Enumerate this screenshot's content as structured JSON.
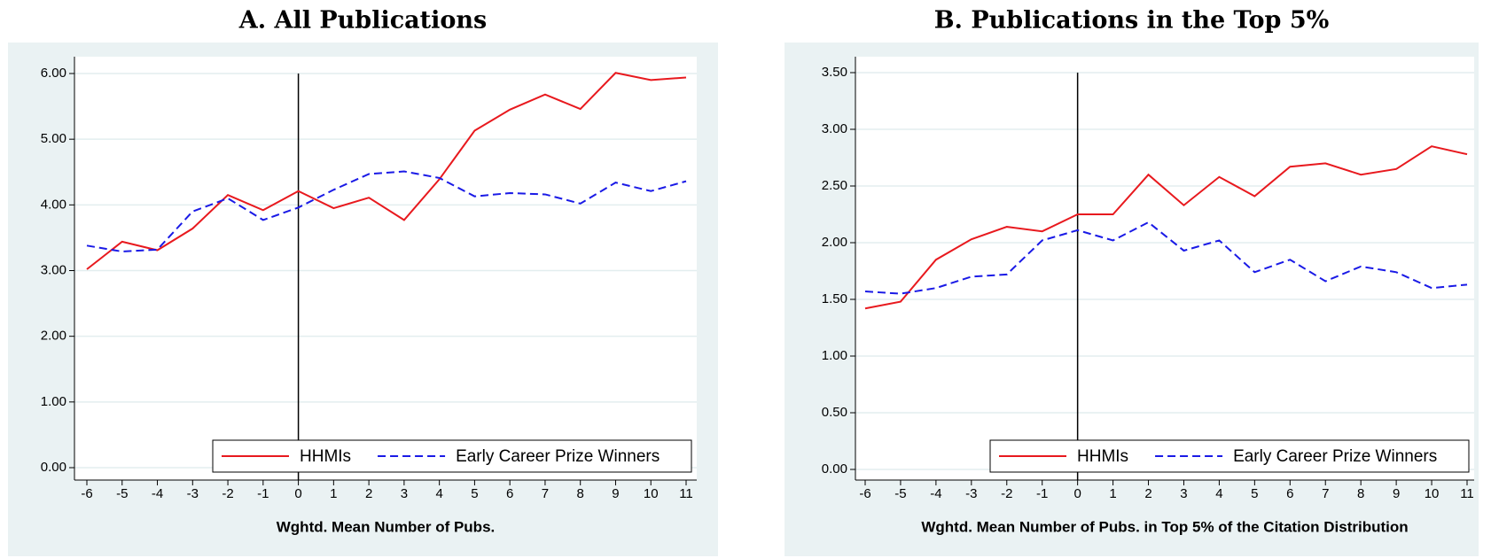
{
  "chart_data": [
    {
      "type": "line",
      "title": "A. All Publications",
      "x_label": "Wghtd. Mean Number of Pubs.",
      "x": [
        -6,
        -5,
        -4,
        -3,
        -2,
        -1,
        0,
        1,
        2,
        3,
        4,
        5,
        6,
        7,
        8,
        9,
        10,
        11
      ],
      "series": [
        {
          "name": "HHMIs",
          "color": "#e8191e",
          "style": "solid",
          "values": [
            3.02,
            3.44,
            3.31,
            3.64,
            4.15,
            3.92,
            4.21,
            3.95,
            4.11,
            3.77,
            4.39,
            5.13,
            5.45,
            5.68,
            5.46,
            6.01,
            5.9,
            5.94
          ]
        },
        {
          "name": "Early Career Prize Winners",
          "color": "#1a1ae6",
          "style": "dashed",
          "values": [
            3.38,
            3.29,
            3.32,
            3.9,
            4.1,
            3.77,
            3.96,
            4.23,
            4.47,
            4.51,
            4.41,
            4.13,
            4.18,
            4.16,
            4.02,
            4.34,
            4.21,
            4.36
          ]
        }
      ],
      "xlim": [
        -6,
        11
      ],
      "xticks": [
        -6,
        -5,
        -4,
        -3,
        -2,
        -1,
        0,
        1,
        2,
        3,
        4,
        5,
        6,
        7,
        8,
        9,
        10,
        11
      ],
      "ylim": [
        0,
        6
      ],
      "yticks": [
        {
          "value": 0,
          "label": "0.00"
        },
        {
          "value": 1,
          "label": "1.00"
        },
        {
          "value": 2,
          "label": "2.00"
        },
        {
          "value": 3,
          "label": "3.00"
        },
        {
          "value": 4,
          "label": "4.00"
        },
        {
          "value": 5,
          "label": "5.00"
        },
        {
          "value": 6,
          "label": "6.00"
        }
      ],
      "vline": 0,
      "grid": true,
      "legend": "lower right"
    },
    {
      "type": "line",
      "title": "B. Publications in the Top 5%",
      "x_label": "Wghtd. Mean Number of Pubs. in Top 5% of the Citation Distribution",
      "x": [
        -6,
        -5,
        -4,
        -3,
        -2,
        -1,
        0,
        1,
        2,
        3,
        4,
        5,
        6,
        7,
        8,
        9,
        10,
        11
      ],
      "series": [
        {
          "name": "HHMIs",
          "color": "#e8191e",
          "style": "solid",
          "values": [
            1.42,
            1.48,
            1.85,
            2.03,
            2.14,
            2.1,
            2.25,
            2.25,
            2.6,
            2.33,
            2.58,
            2.41,
            2.67,
            2.7,
            2.6,
            2.65,
            2.85,
            2.78
          ]
        },
        {
          "name": "Early Career Prize Winners",
          "color": "#1a1ae6",
          "style": "dashed",
          "values": [
            1.57,
            1.55,
            1.6,
            1.7,
            1.72,
            2.02,
            2.11,
            2.02,
            2.18,
            1.93,
            2.02,
            1.74,
            1.85,
            1.66,
            1.79,
            1.74,
            1.6,
            1.63
          ]
        }
      ],
      "xlim": [
        -6,
        11
      ],
      "xticks": [
        -6,
        -5,
        -4,
        -3,
        -2,
        -1,
        0,
        1,
        2,
        3,
        4,
        5,
        6,
        7,
        8,
        9,
        10,
        11
      ],
      "ylim": [
        0,
        3.5
      ],
      "yticks": [
        {
          "value": 0,
          "label": "0.00"
        },
        {
          "value": 0.5,
          "label": "0.50"
        },
        {
          "value": 1,
          "label": "1.00"
        },
        {
          "value": 1.5,
          "label": "1.50"
        },
        {
          "value": 2,
          "label": "2.00"
        },
        {
          "value": 2.5,
          "label": "2.50"
        },
        {
          "value": 3,
          "label": "3.00"
        },
        {
          "value": 3.5,
          "label": "3.50"
        }
      ],
      "vline": 0,
      "grid": true,
      "legend": "lower right"
    }
  ]
}
